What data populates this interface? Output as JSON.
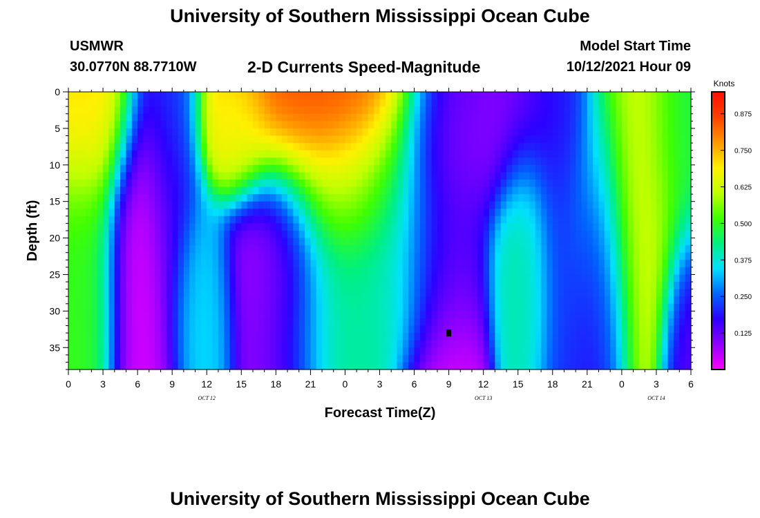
{
  "page": {
    "title": "University of Southern Mississippi Ocean Cube",
    "footer_title": "University of Southern Mississippi Ocean Cube",
    "station": "USMWR",
    "coords": "30.0770N  88.7710W",
    "subtitle": "2-D Currents Speed-Magnitude",
    "model_start_label": "Model Start Time",
    "model_start_value": "10/12/2021 Hour 09"
  },
  "colors": {
    "colormap": [
      "#ff00ff",
      "#9000ff",
      "#2c00ff",
      "#0066ff",
      "#00e0ff",
      "#00f080",
      "#40ff00",
      "#c0ff00",
      "#fff000",
      "#ff9800",
      "#ff4000",
      "#ff1000"
    ]
  },
  "chart_data": {
    "type": "heatmap",
    "title": "2-D Currents Speed-Magnitude",
    "xlabel": "Forecast Time(Z)",
    "ylabel": "Depth (ft)",
    "colorbar_label": "Knots",
    "x_ticks": [
      "0",
      "3",
      "6",
      "9",
      "12",
      "15",
      "18",
      "21",
      "0",
      "3",
      "6",
      "9",
      "12",
      "15",
      "18",
      "21",
      "0",
      "3",
      "6"
    ],
    "x_range_hours": [
      0,
      54
    ],
    "date_labels": [
      {
        "hour": 12,
        "label": "OCT 12"
      },
      {
        "hour": 36,
        "label": "OCT 13"
      },
      {
        "hour": 51,
        "label": "OCT 14"
      }
    ],
    "y_ticks": [
      0,
      5,
      10,
      15,
      20,
      25,
      30,
      35
    ],
    "y_range": [
      0,
      38
    ],
    "colorbar_ticks": [
      "0.875",
      "0.750",
      "0.625",
      "0.500",
      "0.375",
      "0.250",
      "0.125"
    ],
    "colorbar_tick_values": [
      0.875,
      0.75,
      0.625,
      0.5,
      0.375,
      0.25,
      0.125
    ],
    "value_range": [
      0.0,
      0.95
    ],
    "marker": {
      "hour": 33,
      "depth": 33
    },
    "features": [
      {
        "hour": 1.5,
        "depth": 4,
        "value": 0.72,
        "sx": 2.2,
        "sy": 7
      },
      {
        "hour": 1,
        "depth": 22,
        "value": 0.5,
        "sx": 1.8,
        "sy": 10
      },
      {
        "hour": 6.5,
        "depth": 20,
        "value": 0.03,
        "sx": 1.8,
        "sy": 11
      },
      {
        "hour": 9,
        "depth": 8,
        "value": 0.2,
        "sx": 1.4,
        "sy": 12
      },
      {
        "hour": 11.5,
        "depth": 27,
        "value": 0.35,
        "sx": 1.4,
        "sy": 7
      },
      {
        "hour": 14.5,
        "depth": 5,
        "value": 0.65,
        "sx": 1.6,
        "sy": 5
      },
      {
        "hour": 18,
        "depth": 23,
        "value": 0.05,
        "sx": 2.4,
        "sy": 8
      },
      {
        "hour": 22.5,
        "depth": 2,
        "value": 0.85,
        "sx": 5.2,
        "sy": 7
      },
      {
        "hour": 24.5,
        "depth": 14,
        "value": 0.62,
        "sx": 3.2,
        "sy": 6
      },
      {
        "hour": 25,
        "depth": 26,
        "value": 0.42,
        "sx": 4,
        "sy": 7
      },
      {
        "hour": 30,
        "depth": 18,
        "value": 0.3,
        "sx": 3,
        "sy": 8
      },
      {
        "hour": 32.5,
        "depth": 20,
        "value": 0.02,
        "sx": 1.8,
        "sy": 18
      },
      {
        "hour": 36,
        "depth": 5,
        "value": 0.08,
        "sx": 4,
        "sy": 6
      },
      {
        "hour": 39.5,
        "depth": 21,
        "value": 0.4,
        "sx": 1.4,
        "sy": 9
      },
      {
        "hour": 42.5,
        "depth": 10,
        "value": 0.2,
        "sx": 1.4,
        "sy": 14
      },
      {
        "hour": 46,
        "depth": 22,
        "value": 0.15,
        "sx": 1.4,
        "sy": 10
      },
      {
        "hour": 49.5,
        "depth": 14,
        "value": 0.62,
        "sx": 2.8,
        "sy": 11
      },
      {
        "hour": 53.5,
        "depth": 8,
        "value": 0.45,
        "sx": 1.6,
        "sy": 8
      },
      {
        "hour": 54,
        "depth": 30,
        "value": 0.12,
        "sx": 1.2,
        "sy": 8
      }
    ]
  }
}
